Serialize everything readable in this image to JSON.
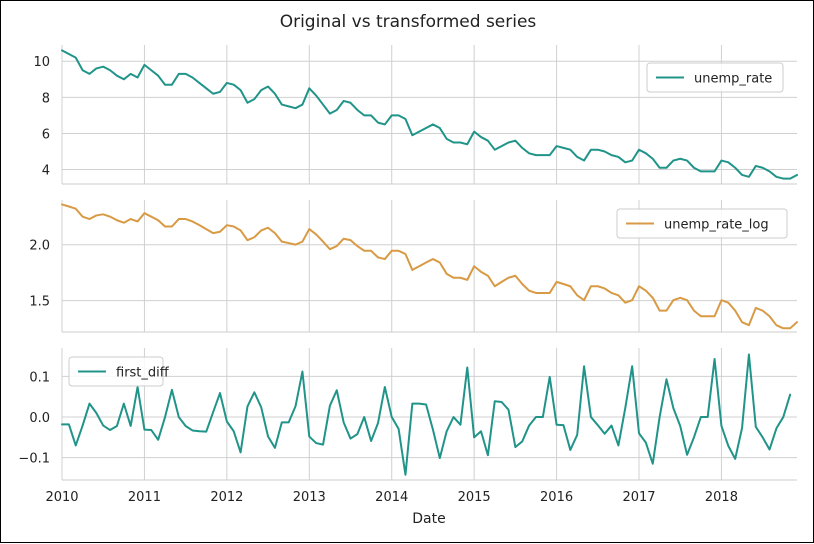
{
  "chart_data": {
    "type": "line",
    "title": "Original vs transformed series",
    "xlabel": "Date",
    "x_start": "2010-01",
    "x_end": "2018-12",
    "x_frequency": "monthly",
    "x_ticks": [
      "2010",
      "2011",
      "2012",
      "2013",
      "2014",
      "2015",
      "2016",
      "2017",
      "2018"
    ],
    "grid": true,
    "panels": [
      {
        "series_name": "unemp_rate",
        "color": "#21948a",
        "legend_position": "top-right",
        "ylim": [
          3.2,
          10.9
        ],
        "yticks": [
          4,
          6,
          8,
          10
        ],
        "ytick_labels": [
          "4",
          "6",
          "8",
          "10"
        ],
        "values": [
          10.6,
          10.4,
          10.2,
          9.5,
          9.3,
          9.6,
          9.7,
          9.5,
          9.2,
          9.0,
          9.3,
          9.1,
          9.8,
          9.5,
          9.2,
          8.7,
          8.7,
          9.3,
          9.3,
          9.1,
          8.8,
          8.5,
          8.2,
          8.3,
          8.8,
          8.7,
          8.4,
          7.7,
          7.9,
          8.4,
          8.6,
          8.2,
          7.6,
          7.5,
          7.4,
          7.6,
          8.5,
          8.1,
          7.6,
          7.1,
          7.3,
          7.8,
          7.7,
          7.3,
          7.0,
          7.0,
          6.6,
          6.5,
          7.0,
          7.0,
          6.8,
          5.9,
          6.1,
          6.3,
          6.5,
          6.3,
          5.7,
          5.5,
          5.5,
          5.4,
          6.1,
          5.8,
          5.6,
          5.1,
          5.3,
          5.5,
          5.6,
          5.2,
          4.9,
          4.8,
          4.8,
          4.8,
          5.3,
          5.2,
          5.1,
          4.7,
          4.5,
          5.1,
          5.1,
          5.0,
          4.8,
          4.7,
          4.4,
          4.5,
          5.1,
          4.9,
          4.6,
          4.1,
          4.1,
          4.5,
          4.6,
          4.5,
          4.1,
          3.9,
          3.9,
          3.9,
          4.5,
          4.4,
          4.1,
          3.7,
          3.6,
          4.2,
          4.1,
          3.9,
          3.6,
          3.5,
          3.5,
          3.7
        ]
      },
      {
        "series_name": "unemp_rate_log",
        "color": "#d89a45",
        "legend_position": "top-right",
        "ylim": [
          1.22,
          2.4
        ],
        "yticks": [
          1.5,
          2.0
        ],
        "ytick_labels": [
          "1.5",
          "2.0"
        ],
        "values": [
          2.36,
          2.342,
          2.322,
          2.251,
          2.23,
          2.262,
          2.272,
          2.251,
          2.219,
          2.197,
          2.23,
          2.208,
          2.282,
          2.251,
          2.219,
          2.163,
          2.163,
          2.23,
          2.23,
          2.208,
          2.175,
          2.14,
          2.104,
          2.116,
          2.175,
          2.163,
          2.128,
          2.041,
          2.067,
          2.128,
          2.152,
          2.104,
          2.028,
          2.015,
          2.001,
          2.028,
          2.14,
          2.092,
          2.028,
          1.96,
          1.988,
          2.054,
          2.041,
          1.988,
          1.946,
          1.946,
          1.887,
          1.872,
          1.946,
          1.946,
          1.917,
          1.775,
          1.808,
          1.841,
          1.872,
          1.841,
          1.74,
          1.705,
          1.705,
          1.686,
          1.808,
          1.758,
          1.723,
          1.629,
          1.668,
          1.705,
          1.723,
          1.649,
          1.589,
          1.569,
          1.569,
          1.569,
          1.668,
          1.649,
          1.629,
          1.548,
          1.504,
          1.629,
          1.629,
          1.609,
          1.569,
          1.548,
          1.482,
          1.504,
          1.629,
          1.589,
          1.526,
          1.411,
          1.411,
          1.504,
          1.526,
          1.504,
          1.411,
          1.361,
          1.361,
          1.361,
          1.504,
          1.482,
          1.411,
          1.308,
          1.281,
          1.435,
          1.411,
          1.361,
          1.281,
          1.253,
          1.253,
          1.308
        ]
      },
      {
        "series_name": "first_diff",
        "color": "#21948a",
        "legend_position": "top-left",
        "ylim": [
          -0.155,
          0.17
        ],
        "yticks": [
          -0.1,
          0.0,
          0.1
        ],
        "ytick_labels": [
          "−0.1",
          "0.0",
          "0.1"
        ],
        "values": [
          -0.018,
          -0.018,
          -0.07,
          -0.021,
          0.033,
          0.01,
          -0.021,
          -0.032,
          -0.022,
          0.033,
          -0.022,
          0.074,
          -0.031,
          -0.032,
          -0.056,
          0.0,
          0.067,
          0.0,
          -0.022,
          -0.033,
          -0.035,
          -0.036,
          0.012,
          0.059,
          -0.011,
          -0.035,
          -0.087,
          0.026,
          0.061,
          0.024,
          -0.048,
          -0.076,
          -0.013,
          -0.013,
          0.027,
          0.112,
          -0.048,
          -0.064,
          -0.068,
          0.028,
          0.066,
          -0.013,
          -0.053,
          -0.042,
          0.0,
          -0.059,
          -0.015,
          0.074,
          0.0,
          -0.029,
          -0.142,
          0.033,
          0.033,
          0.031,
          -0.031,
          -0.101,
          -0.035,
          0.0,
          -0.019,
          0.122,
          -0.05,
          -0.035,
          -0.094,
          0.039,
          0.037,
          0.018,
          -0.074,
          -0.06,
          -0.021,
          0.0,
          0.0,
          0.099,
          -0.019,
          -0.02,
          -0.081,
          -0.044,
          0.125,
          0.0,
          -0.02,
          -0.041,
          -0.021,
          -0.07,
          0.022,
          0.125,
          -0.04,
          -0.063,
          -0.115,
          0.0,
          0.093,
          0.022,
          -0.022,
          -0.093,
          -0.05,
          0.0,
          0.0,
          0.143,
          -0.022,
          -0.071,
          -0.103,
          -0.027,
          0.154,
          -0.024,
          -0.05,
          -0.08,
          -0.028,
          0.0,
          0.055
        ]
      }
    ]
  }
}
